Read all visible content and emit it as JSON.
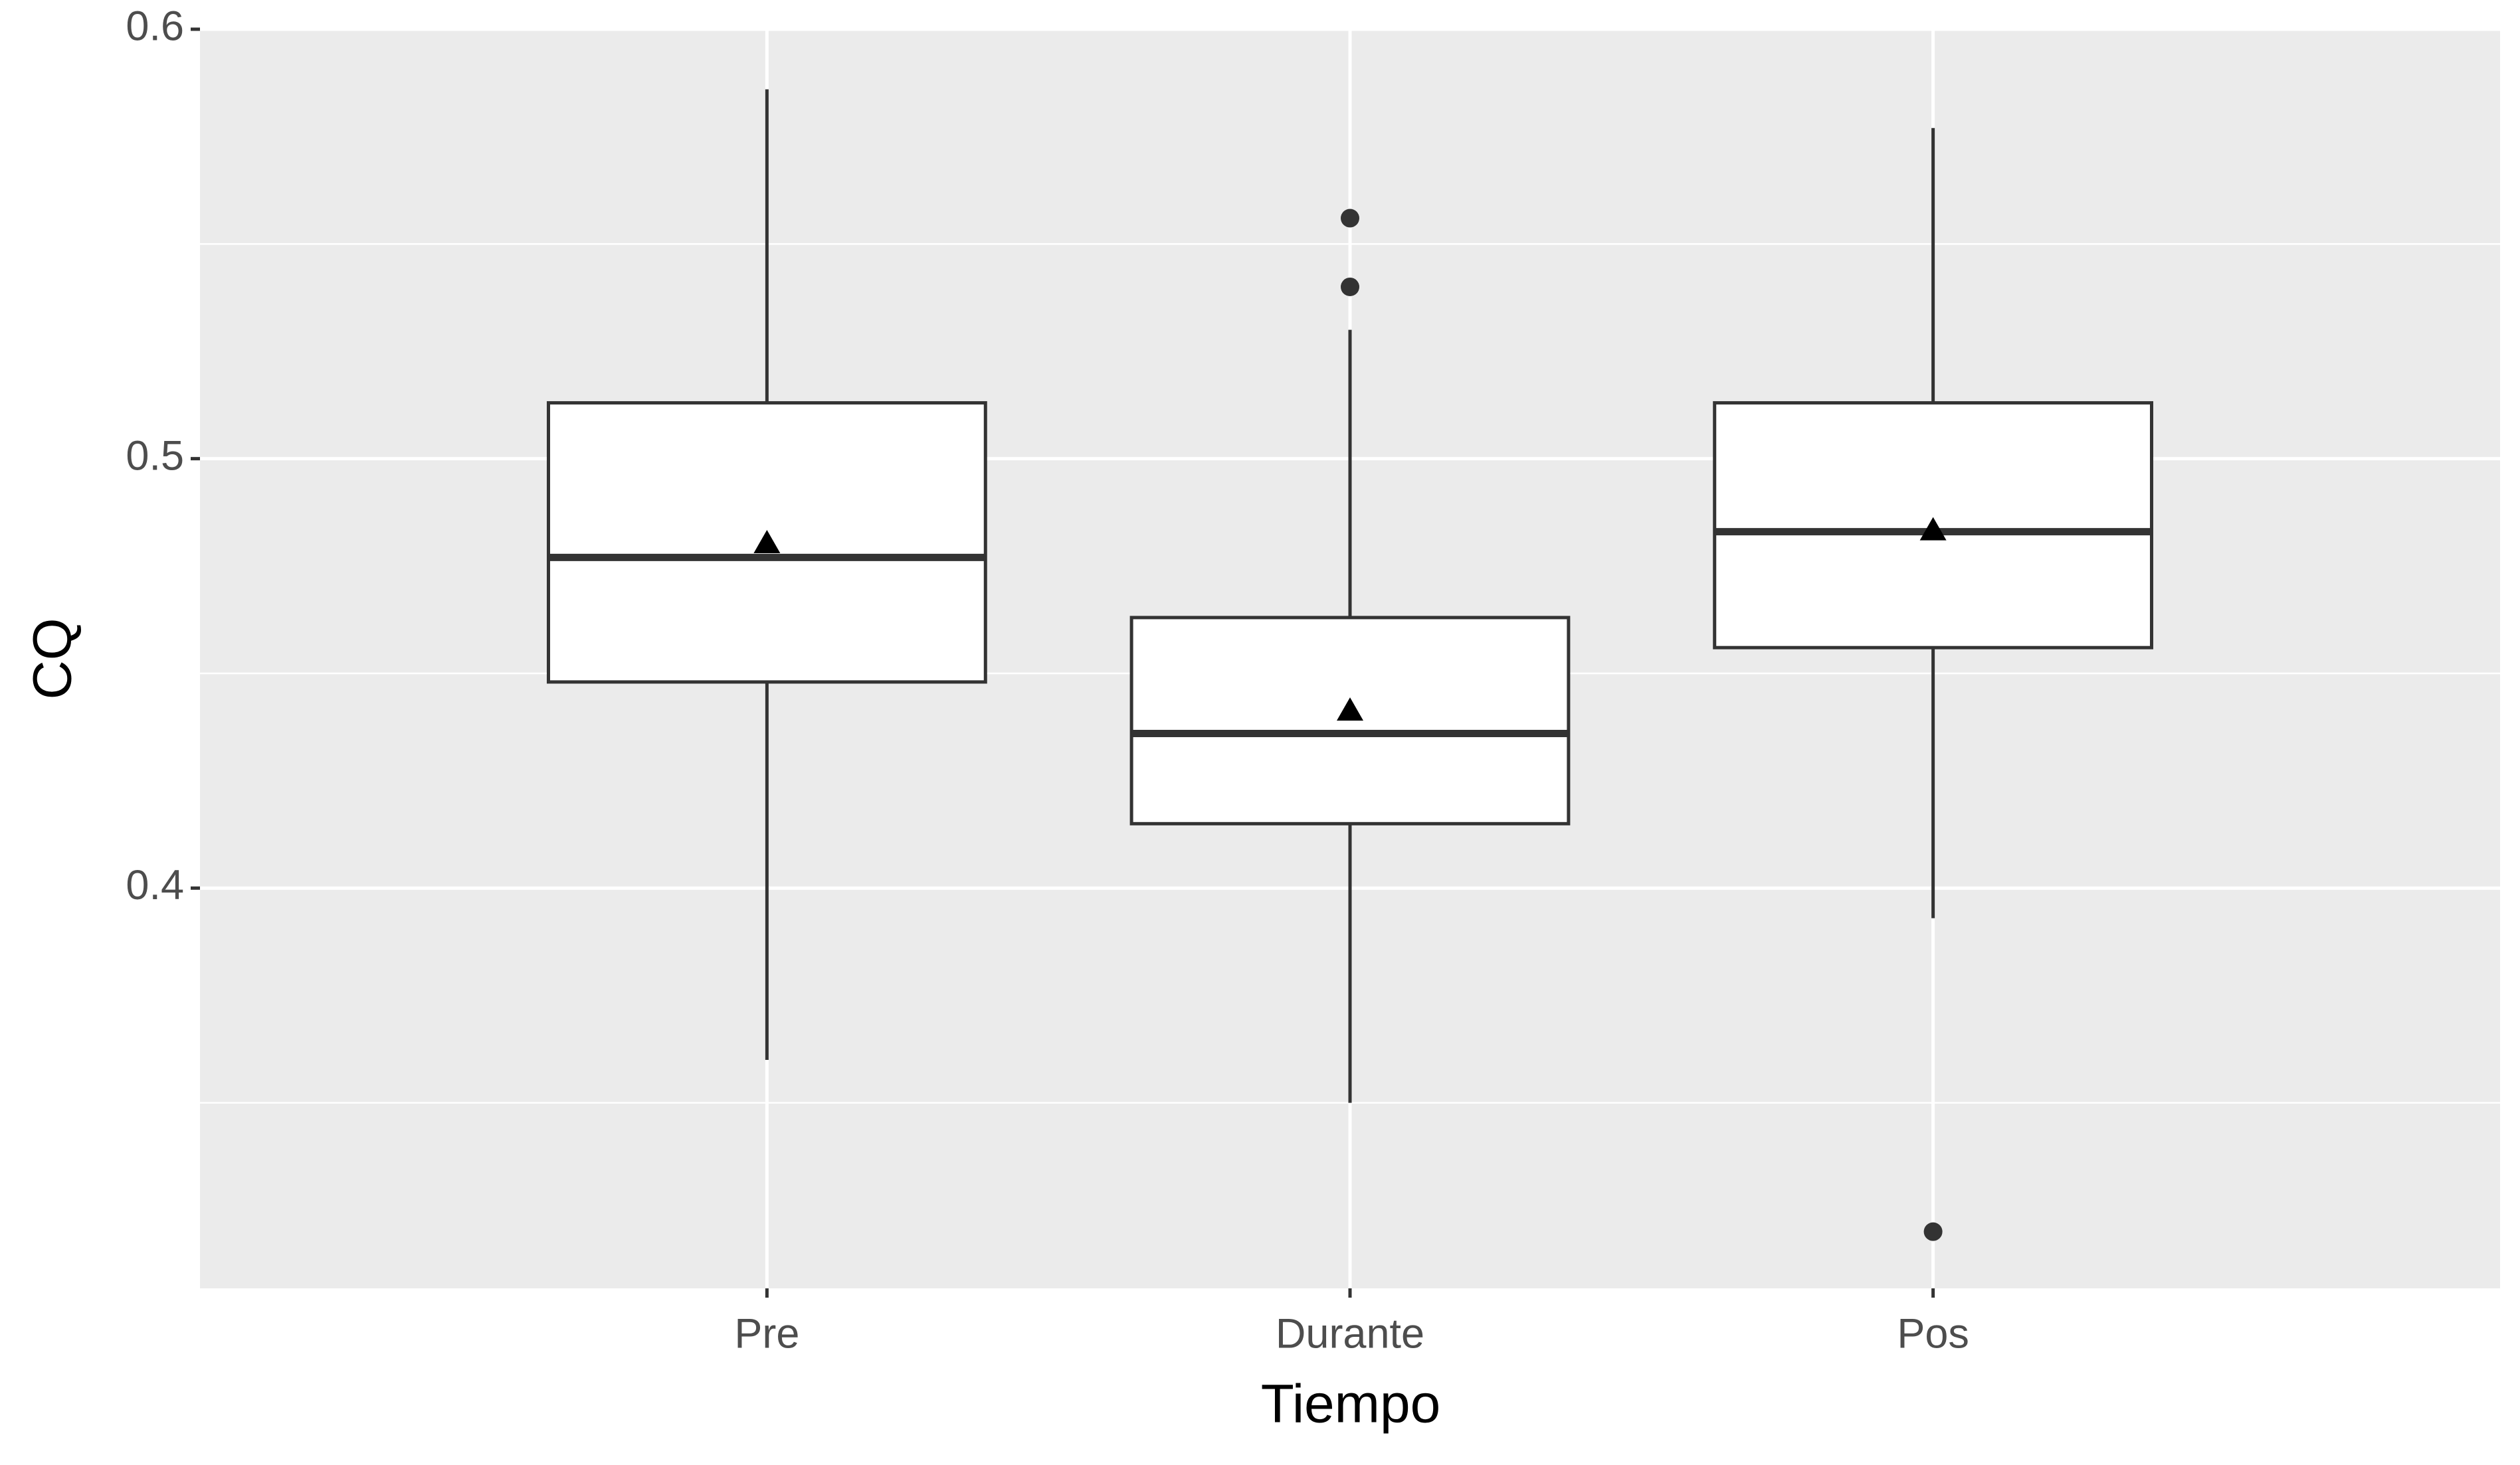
{
  "chart_data": {
    "type": "box",
    "x_label": "Tiempo",
    "y_label": "CQ",
    "categories": [
      "Pre",
      "Durante",
      "Pos"
    ],
    "boxes": [
      {
        "whisker_low": 0.36,
        "q1": 0.448,
        "median": 0.477,
        "q3": 0.513,
        "whisker_high": 0.586,
        "mean": 0.48,
        "outliers": []
      },
      {
        "whisker_low": 0.35,
        "q1": 0.415,
        "median": 0.436,
        "q3": 0.463,
        "whisker_high": 0.53,
        "mean": 0.441,
        "outliers": [
          0.556,
          0.54
        ]
      },
      {
        "whisker_low": 0.393,
        "q1": 0.456,
        "median": 0.483,
        "q3": 0.513,
        "whisker_high": 0.577,
        "mean": 0.483,
        "outliers": [
          0.32
        ]
      }
    ],
    "box_color": "#ffffff",
    "line_color": "#333333",
    "panel_color": "#ebebeb",
    "ylim": [
      0.3068,
      0.6
    ],
    "yticks": [
      0.4,
      0.5,
      0.6
    ],
    "minor_yticks": [
      0.35,
      0.45,
      0.55
    ],
    "grid": true
  }
}
